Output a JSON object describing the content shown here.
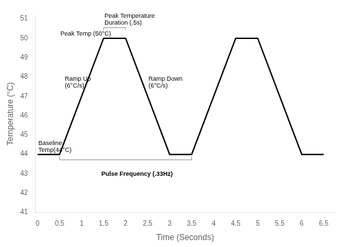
{
  "chart_data": {
    "type": "line",
    "x": [
      0,
      0.5,
      1.5,
      2.0,
      3.0,
      3.5,
      4.5,
      5.0,
      6.0,
      6.5
    ],
    "values": [
      44,
      44,
      50,
      50,
      44,
      44,
      50,
      50,
      44,
      44
    ],
    "color": "black",
    "xlim": [
      -0.05,
      6.75
    ],
    "ylim": [
      41,
      51.2
    ],
    "xticks": [
      0,
      0.5,
      1,
      1.5,
      2,
      2.5,
      3,
      3.5,
      4,
      4.5,
      5,
      5.5,
      6,
      6.5
    ],
    "yticks": [
      41,
      42,
      43,
      44,
      45,
      46,
      47,
      48,
      49,
      50,
      51
    ],
    "xlabel": "Time (Seconds)",
    "ylabel": "Temperature (°C)",
    "grid": false,
    "annotations": [
      {
        "text": "Baseline\nTemp(44°C)",
        "x": 0.02,
        "y": 44.05
      },
      {
        "text": "Peak Temp (50°C)",
        "x": 0.52,
        "y": 50.08
      },
      {
        "text": "Ramp Up\n(6°C/s)",
        "x": 0.62,
        "y": 47.4
      },
      {
        "text": "Ramp Down\n(6°C/s)",
        "x": 2.52,
        "y": 47.4
      },
      {
        "text": "Peak Temperature\nDuration (.5s)",
        "x": 1.52,
        "y": 50.62,
        "bracket": {
          "x": [
            1.5,
            2.0
          ],
          "y": [
            50.55,
            50.43
          ]
        }
      },
      {
        "text": "Pulse Frequency (.33Hz)",
        "x": 1.45,
        "y": 43.15,
        "bracket": {
          "x": [
            0.5,
            3.5
          ],
          "y": [
            43.72,
            43.9
          ]
        }
      }
    ]
  }
}
